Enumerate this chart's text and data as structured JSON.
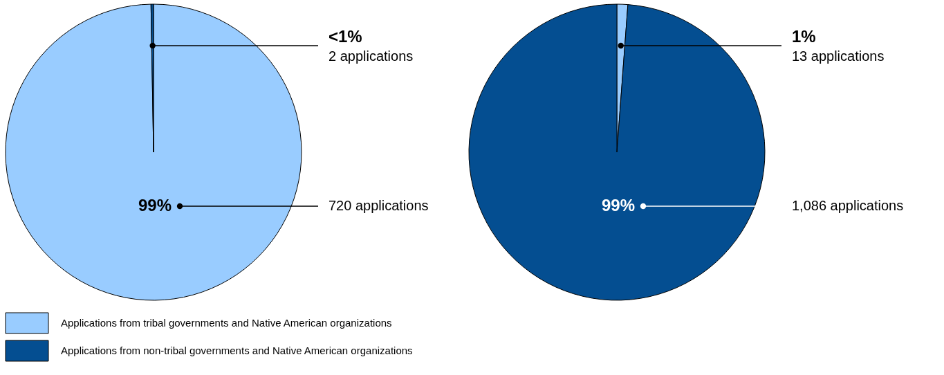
{
  "chart_data": [
    {
      "type": "pie",
      "categories": [
        "Applications from tribal governments and Native American organizations",
        "Applications from non-tribal governments and Native American organizations"
      ],
      "values": [
        720,
        2
      ],
      "colors": [
        "#99ccff",
        "#044e91"
      ],
      "value_labels": [
        "720 applications",
        "2 applications"
      ],
      "annotations": [
        "99%",
        "<1%"
      ],
      "legend": "bottom"
    },
    {
      "type": "pie",
      "categories": [
        null,
        null
      ],
      "values": [
        13,
        1086
      ],
      "colors": [
        "#99ccff",
        "#044e91"
      ],
      "value_labels": [
        "13 applications",
        "1,086 applications"
      ],
      "annotations": [
        "1%",
        "99%"
      ]
    }
  ]
}
